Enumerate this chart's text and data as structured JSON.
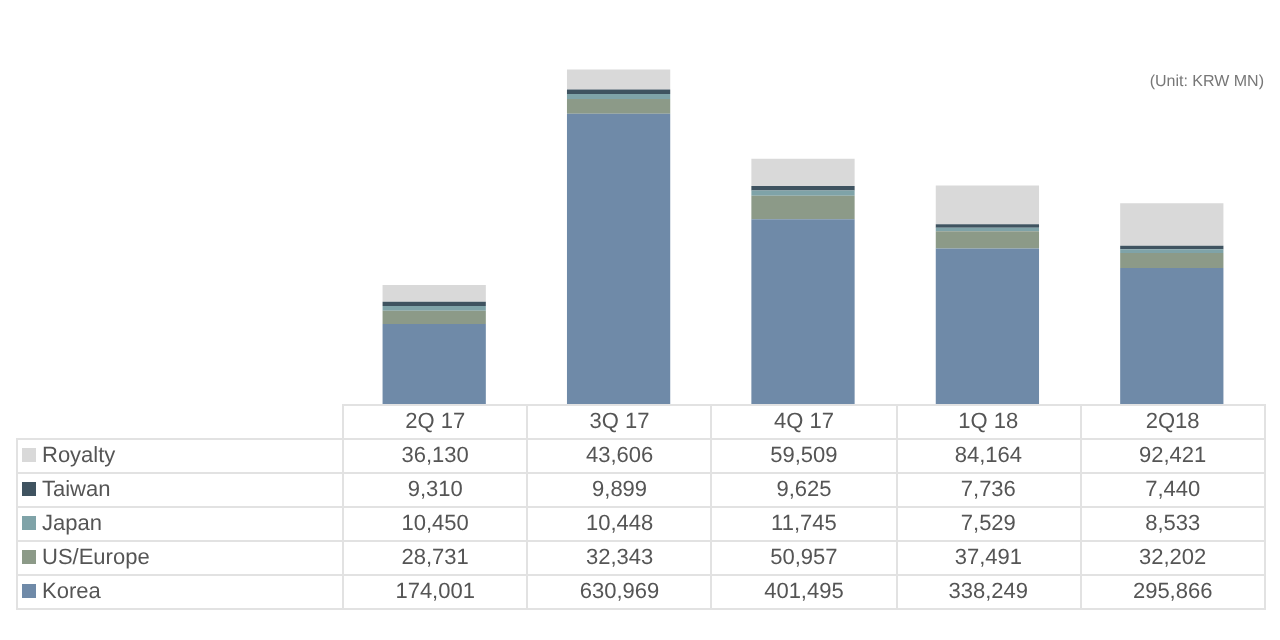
{
  "chart_data": {
    "type": "bar",
    "stacked": true,
    "legend": "bottom",
    "annotations": [
      "(Unit: KRW MN)"
    ],
    "categories": [
      "2Q 17",
      "3Q 17",
      "4Q 17",
      "1Q 18",
      "2Q18"
    ],
    "series": [
      {
        "name": "Korea",
        "color": "#6f8aa8",
        "values": [
          174001,
          630969,
          401495,
          338249,
          295866
        ],
        "value_labels": [
          "174,001",
          "630,969",
          "401,495",
          "338,249",
          "295,866"
        ]
      },
      {
        "name": "US/Europe",
        "color": "#8c9a88",
        "values": [
          28731,
          32343,
          50957,
          37491,
          32202
        ],
        "value_labels": [
          "28,731",
          "32,343",
          "50,957",
          "37,491",
          "32,202"
        ]
      },
      {
        "name": "Japan",
        "color": "#7fa3a8",
        "values": [
          10450,
          10448,
          11745,
          7529,
          8533
        ],
        "value_labels": [
          "10,450",
          "10,448",
          "11,745",
          "7,529",
          "8,533"
        ]
      },
      {
        "name": "Taiwan",
        "color": "#3f5360",
        "values": [
          9310,
          9899,
          9625,
          7736,
          7440
        ],
        "value_labels": [
          "9,310",
          "9,899",
          "9,625",
          "7,736",
          "7,440"
        ]
      },
      {
        "name": "Royalty",
        "color": "#d9d9d9",
        "values": [
          36130,
          43606,
          59509,
          84164,
          92421
        ],
        "value_labels": [
          "36,130",
          "43,606",
          "59,509",
          "84,164",
          "92,421"
        ]
      }
    ]
  }
}
